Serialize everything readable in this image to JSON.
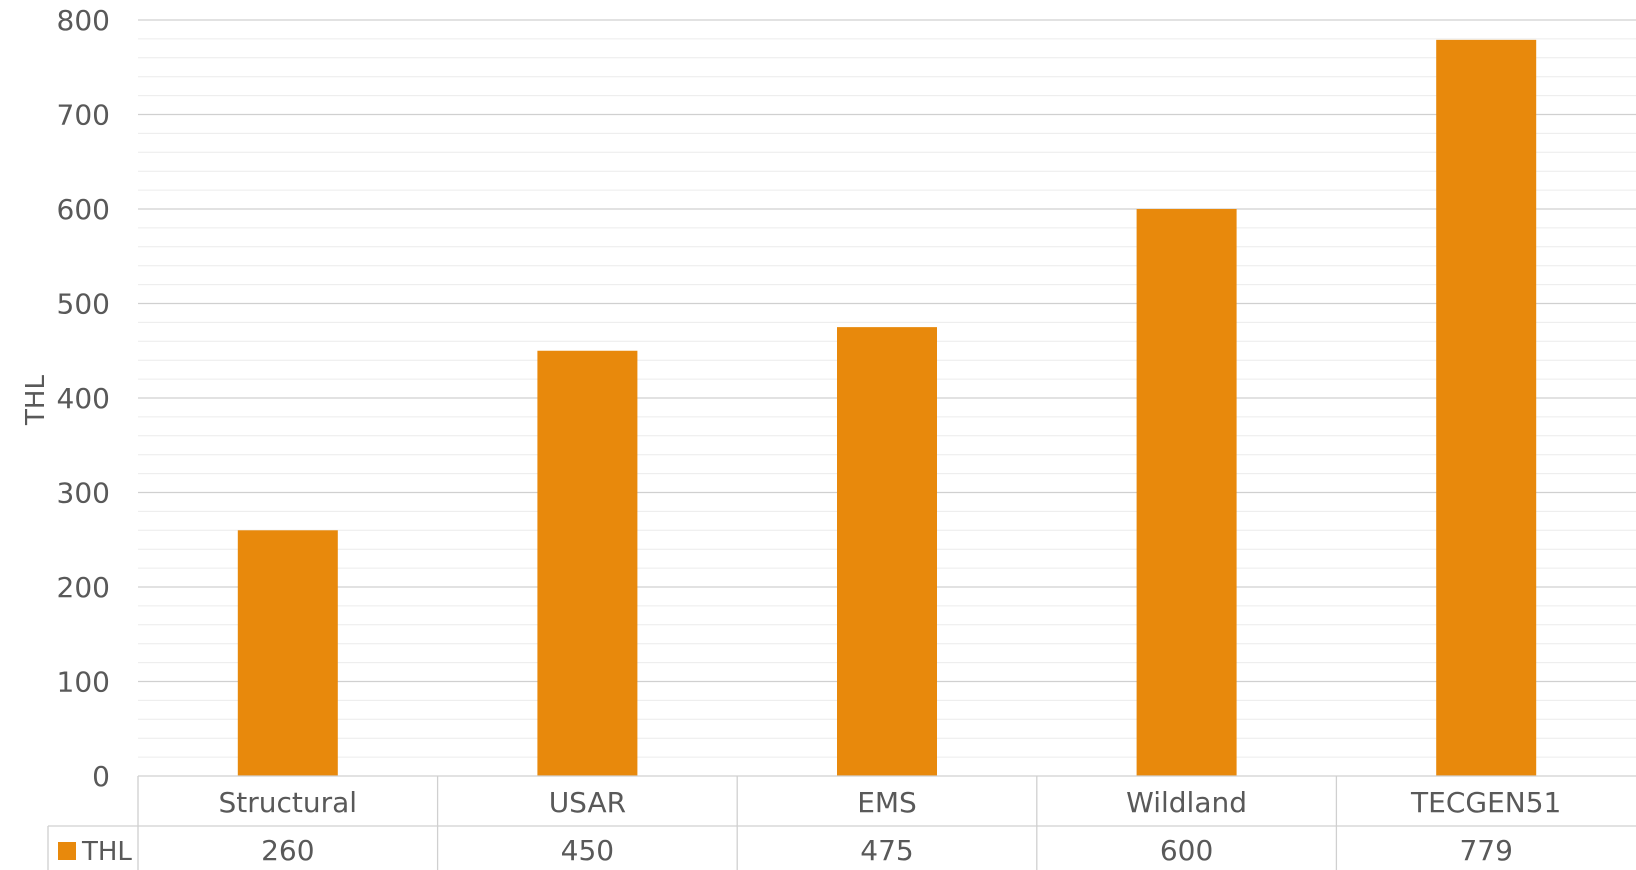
{
  "chart_data": {
    "type": "bar",
    "categories": [
      "Structural",
      "USAR",
      "EMS",
      "Wildland",
      "TECGEN51"
    ],
    "series": [
      {
        "name": "THL",
        "values": [
          260,
          450,
          475,
          600,
          779
        ],
        "color": "#E8890C"
      }
    ],
    "title": "",
    "xlabel": "",
    "ylabel": "THL",
    "ylim": [
      0,
      800
    ],
    "yticks": [
      0,
      100,
      200,
      300,
      400,
      500,
      600,
      700,
      800
    ],
    "minor_gridlines": true,
    "data_table": true,
    "legend": "data-table-row"
  }
}
